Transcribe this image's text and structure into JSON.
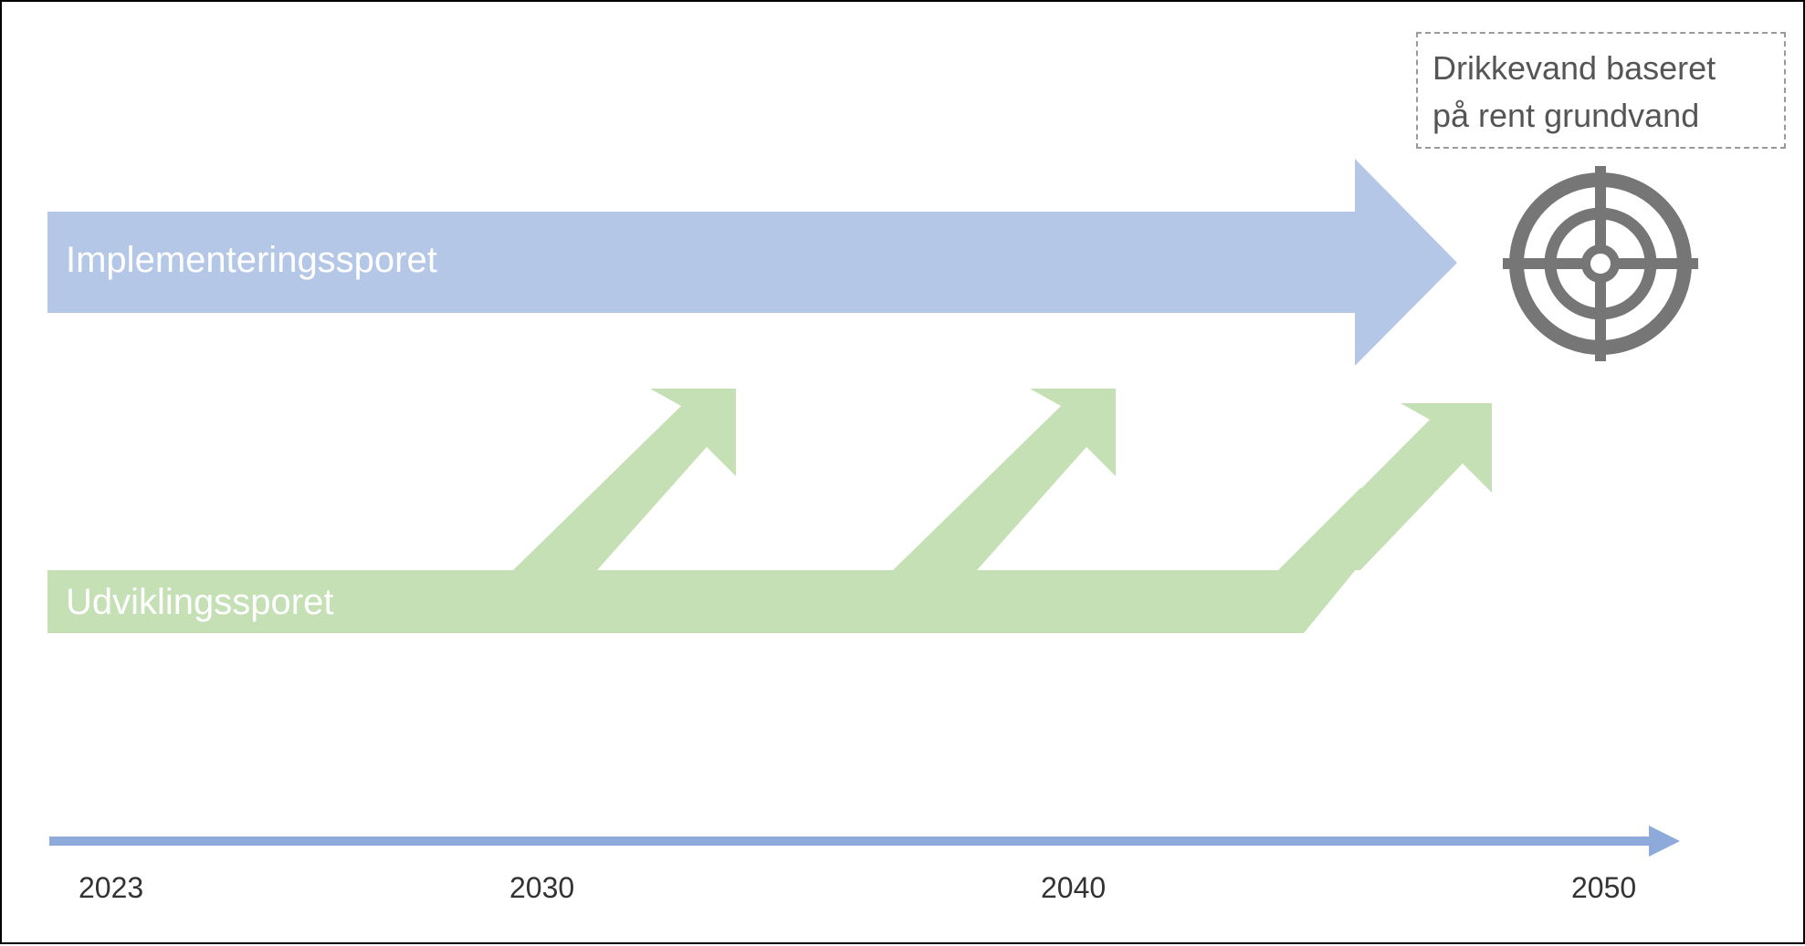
{
  "tracks": {
    "implementation": {
      "label": "Implementeringssporet",
      "color": "#b4c7e7"
    },
    "development": {
      "label": "Udviklingssporet",
      "color": "#c5e0b4"
    }
  },
  "goal": {
    "lines": [
      "Drikkevand baseret",
      "på rent grundvand"
    ],
    "icon": "target-icon",
    "icon_color": "#767676"
  },
  "timeline": {
    "years": [
      "2023",
      "2030",
      "2040",
      "2050"
    ],
    "axis_color": "#8eaadb"
  }
}
